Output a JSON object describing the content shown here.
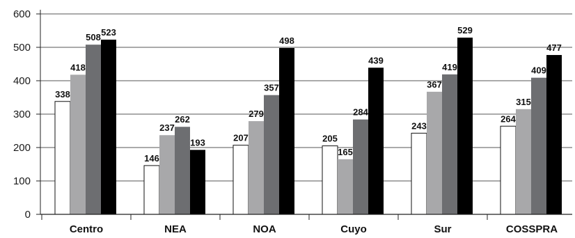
{
  "chart_data": {
    "type": "bar",
    "categories": [
      "Centro",
      "NEA",
      "NOA",
      "Cuyo",
      "Sur",
      "COSSPRA"
    ],
    "series": [
      {
        "values": [
          338,
          146,
          207,
          205,
          243,
          264
        ],
        "color": "#ffffff"
      },
      {
        "values": [
          418,
          237,
          279,
          165,
          367,
          315
        ],
        "color": "#a8a8aa"
      },
      {
        "values": [
          508,
          262,
          357,
          284,
          419,
          409
        ],
        "color": "#6d6e71"
      },
      {
        "values": [
          523,
          193,
          498,
          439,
          529,
          477
        ],
        "color": "#000000"
      }
    ],
    "yticks": [
      0,
      100,
      200,
      300,
      400,
      500,
      600
    ],
    "ylim": [
      0,
      600
    ],
    "grid": true,
    "legend": "none",
    "title": "",
    "xlabel": "",
    "ylabel": ""
  }
}
